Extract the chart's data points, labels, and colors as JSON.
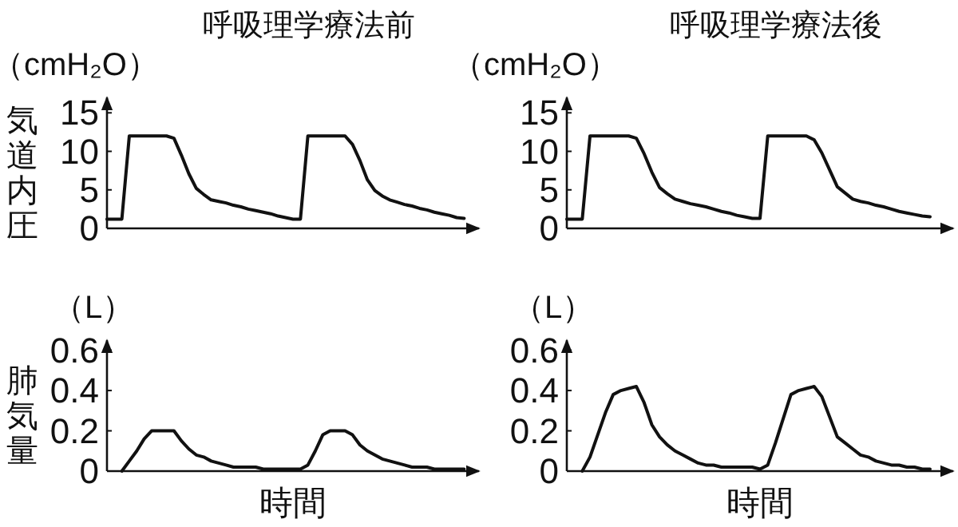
{
  "chart_data": [
    {
      "type": "line",
      "title": "呼吸理学療法前",
      "ylabel": "気道内圧",
      "annotations": [
        "（cmH₂O）"
      ],
      "tick_labels": "y",
      "ylim": [
        0,
        17
      ],
      "yticks": [
        0,
        5,
        10,
        15
      ],
      "marker": "none",
      "line_style": "solid",
      "categories": [
        null,
        null,
        null,
        null,
        null,
        null,
        null,
        null,
        null,
        null,
        null,
        null,
        null,
        null,
        null,
        null,
        null,
        null,
        null,
        null,
        null,
        null,
        null,
        null,
        null,
        null,
        null,
        null,
        null,
        null,
        null,
        null,
        null,
        null,
        null,
        null,
        null,
        null,
        null,
        null,
        null,
        null,
        null,
        null,
        null,
        null,
        null,
        null,
        null,
        null,
        null
      ],
      "series": [
        {
          "color": "#111111",
          "values": [
            1.2,
            1.2,
            1.2,
            12,
            12,
            12,
            12,
            12,
            12,
            11.7,
            9.5,
            7.1,
            5.2,
            4.4,
            3.7,
            3.5,
            3.3,
            3.0,
            2.8,
            2.5,
            2.3,
            2.1,
            1.9,
            1.6,
            1.4,
            1.2,
            1.2,
            12,
            12,
            12,
            12,
            12,
            12,
            10.9,
            8.8,
            6.3,
            4.9,
            4.2,
            3.7,
            3.4,
            3.1,
            2.9,
            2.6,
            2.4,
            2.1,
            1.9,
            1.7,
            1.4,
            1.3,
            null,
            null
          ]
        }
      ]
    },
    {
      "type": "line",
      "title": "呼吸理学療法後",
      "annotations": [
        "（cmH₂O）"
      ],
      "tick_labels": "y",
      "ylim": [
        0,
        17
      ],
      "yticks": [
        0,
        5,
        10,
        15
      ],
      "marker": "none",
      "line_style": "solid",
      "categories": [
        null,
        null,
        null,
        null,
        null,
        null,
        null,
        null,
        null,
        null,
        null,
        null,
        null,
        null,
        null,
        null,
        null,
        null,
        null,
        null,
        null,
        null,
        null,
        null,
        null,
        null,
        null,
        null,
        null,
        null,
        null,
        null,
        null,
        null,
        null,
        null,
        null,
        null,
        null,
        null,
        null,
        null,
        null,
        null,
        null,
        null,
        null,
        null,
        null,
        null,
        null
      ],
      "series": [
        {
          "color": "#111111",
          "values": [
            1.2,
            1.2,
            1.2,
            12,
            12,
            12,
            12,
            12,
            12,
            11.7,
            9.7,
            7.3,
            5.3,
            4.5,
            3.8,
            3.5,
            3.2,
            3.0,
            2.8,
            2.5,
            2.2,
            2.0,
            1.7,
            1.5,
            1.3,
            1.3,
            12,
            12,
            12,
            12,
            12,
            12,
            11.5,
            9.8,
            7.6,
            5.4,
            4.6,
            3.8,
            3.5,
            3.3,
            3.0,
            2.8,
            2.5,
            2.2,
            2.0,
            1.8,
            1.6,
            1.5,
            null,
            null,
            null
          ]
        }
      ]
    },
    {
      "type": "line",
      "ylabel": "肺気量",
      "xlabel": "時間",
      "annotations": [
        "（L）"
      ],
      "tick_labels": "y",
      "ylim": [
        0,
        0.65
      ],
      "yticks": [
        0,
        {
          "value": 0.2,
          "label": "0.2"
        },
        {
          "value": 0.4,
          "label": "0.4"
        },
        {
          "value": 0.6,
          "label": "0.6"
        }
      ],
      "marker": "none",
      "line_style": "solid",
      "categories": [
        null,
        null,
        null,
        null,
        null,
        null,
        null,
        null,
        null,
        null,
        null,
        null,
        null,
        null,
        null,
        null,
        null,
        null,
        null,
        null,
        null,
        null,
        null,
        null,
        null,
        null,
        null,
        null,
        null,
        null,
        null,
        null,
        null,
        null,
        null,
        null,
        null,
        null,
        null,
        null,
        null,
        null,
        null,
        null,
        null,
        null,
        null,
        null,
        null,
        null,
        null
      ],
      "series": [
        {
          "color": "#111111",
          "values": [
            null,
            null,
            0,
            0.05,
            0.1,
            0.16,
            0.2,
            0.2,
            0.2,
            0.2,
            0.15,
            0.11,
            0.08,
            0.07,
            0.05,
            0.04,
            0.03,
            0.02,
            0.02,
            0.02,
            0.02,
            0.01,
            0.01,
            0.01,
            0.01,
            0.01,
            0.01,
            0.03,
            0.1,
            0.18,
            0.2,
            0.2,
            0.2,
            0.18,
            0.13,
            0.1,
            0.08,
            0.06,
            0.05,
            0.04,
            0.03,
            0.02,
            0.02,
            0.02,
            0.01,
            0.01,
            0.01,
            0.01,
            0.01,
            null,
            null
          ]
        }
      ]
    },
    {
      "type": "line",
      "xlabel": "時間",
      "annotations": [
        "（L）"
      ],
      "tick_labels": "y",
      "ylim": [
        0,
        0.65
      ],
      "yticks": [
        0,
        {
          "value": 0.2,
          "label": "0.2"
        },
        {
          "value": 0.4,
          "label": "0.4"
        },
        {
          "value": 0.6,
          "label": "0.6"
        }
      ],
      "marker": "none",
      "line_style": "solid",
      "categories": [
        null,
        null,
        null,
        null,
        null,
        null,
        null,
        null,
        null,
        null,
        null,
        null,
        null,
        null,
        null,
        null,
        null,
        null,
        null,
        null,
        null,
        null,
        null,
        null,
        null,
        null,
        null,
        null,
        null,
        null,
        null,
        null,
        null,
        null,
        null,
        null,
        null,
        null,
        null,
        null,
        null,
        null,
        null,
        null,
        null,
        null,
        null,
        null,
        null,
        null,
        null
      ],
      "series": [
        {
          "color": "#111111",
          "values": [
            null,
            null,
            0,
            0.07,
            0.18,
            0.29,
            0.38,
            0.4,
            0.41,
            0.42,
            0.34,
            0.23,
            0.17,
            0.13,
            0.1,
            0.08,
            0.06,
            0.04,
            0.03,
            0.03,
            0.02,
            0.02,
            0.02,
            0.02,
            0.02,
            0.01,
            0.03,
            0.14,
            0.26,
            0.38,
            0.4,
            0.41,
            0.42,
            0.37,
            0.27,
            0.17,
            0.14,
            0.11,
            0.08,
            0.07,
            0.05,
            0.04,
            0.03,
            0.03,
            0.02,
            0.02,
            0.01,
            0.01,
            null,
            null,
            null
          ]
        }
      ]
    }
  ]
}
